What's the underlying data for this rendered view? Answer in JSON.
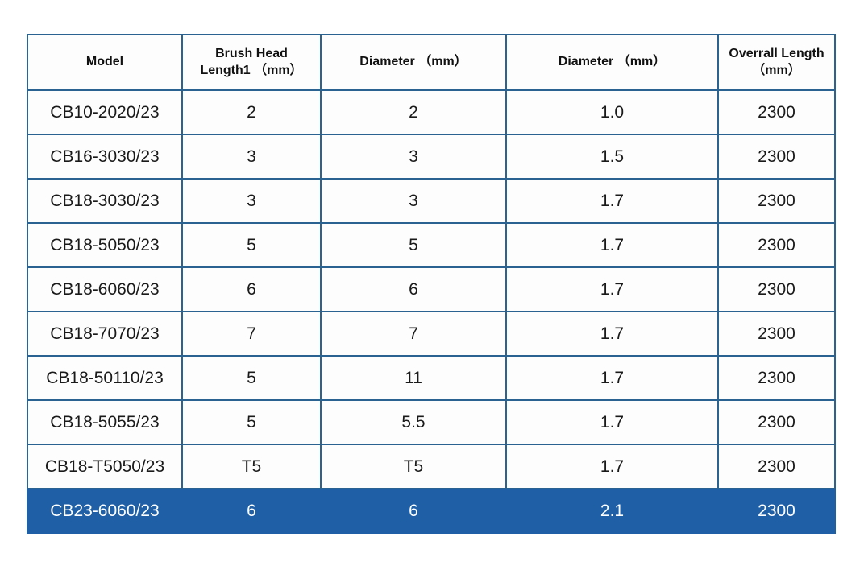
{
  "page": {
    "background_color": "#ffffff"
  },
  "table": {
    "border_color": "#2A6292",
    "highlight_color": "#1E5FA6",
    "highlight_text_color": "#ffffff",
    "columns": [
      {
        "label": "Model"
      },
      {
        "label": "Brush Head\nLength1 （mm）"
      },
      {
        "label": "Diameter （mm）"
      },
      {
        "label": "Diameter （mm）"
      },
      {
        "label": "Overrall Length\n（mm）"
      }
    ],
    "rows": [
      {
        "model": "CB10-2020/23",
        "brush_head_length1": "2",
        "diameter1": "2",
        "diameter2": "1.0",
        "overall_length": "2300",
        "highlighted": false
      },
      {
        "model": "CB16-3030/23",
        "brush_head_length1": "3",
        "diameter1": "3",
        "diameter2": "1.5",
        "overall_length": "2300",
        "highlighted": false
      },
      {
        "model": "CB18-3030/23",
        "brush_head_length1": "3",
        "diameter1": "3",
        "diameter2": "1.7",
        "overall_length": "2300",
        "highlighted": false
      },
      {
        "model": "CB18-5050/23",
        "brush_head_length1": "5",
        "diameter1": "5",
        "diameter2": "1.7",
        "overall_length": "2300",
        "highlighted": false
      },
      {
        "model": "CB18-6060/23",
        "brush_head_length1": "6",
        "diameter1": "6",
        "diameter2": "1.7",
        "overall_length": "2300",
        "highlighted": false
      },
      {
        "model": "CB18-7070/23",
        "brush_head_length1": "7",
        "diameter1": "7",
        "diameter2": "1.7",
        "overall_length": "2300",
        "highlighted": false
      },
      {
        "model": "CB18-50110/23",
        "brush_head_length1": "5",
        "diameter1": "11",
        "diameter2": "1.7",
        "overall_length": "2300",
        "highlighted": false
      },
      {
        "model": "CB18-5055/23",
        "brush_head_length1": "5",
        "diameter1": "5.5",
        "diameter2": "1.7",
        "overall_length": "2300",
        "highlighted": false
      },
      {
        "model": "CB18-T5050/23",
        "brush_head_length1": "T5",
        "diameter1": "T5",
        "diameter2": "1.7",
        "overall_length": "2300",
        "highlighted": false
      },
      {
        "model": "CB23-6060/23",
        "brush_head_length1": "6",
        "diameter1": "6",
        "diameter2": "2.1",
        "overall_length": "2300",
        "highlighted": true
      }
    ]
  }
}
